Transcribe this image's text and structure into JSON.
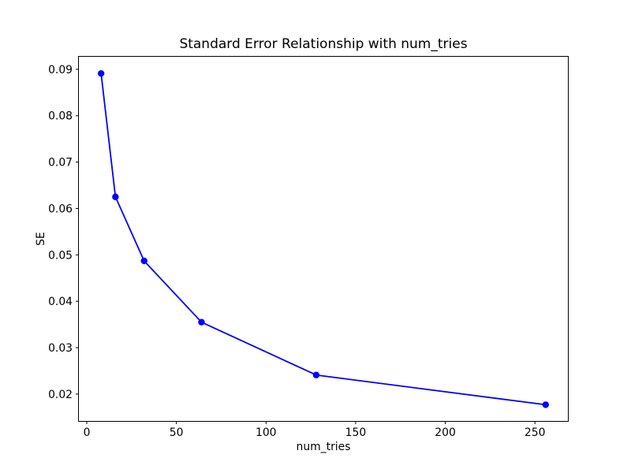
{
  "chart_data": {
    "type": "line",
    "title": "Standard Error Relationship with num_tries",
    "xlabel": "num_tries",
    "ylabel": "SE",
    "x": [
      8,
      16,
      32,
      64,
      128,
      256
    ],
    "y": [
      0.0891,
      0.0625,
      0.0487,
      0.0355,
      0.0241,
      0.0177
    ],
    "xticks": [
      0,
      50,
      100,
      150,
      200,
      250
    ],
    "yticks": [
      0.02,
      0.03,
      0.04,
      0.05,
      0.06,
      0.07,
      0.08,
      0.09
    ],
    "xtick_decimals": 0,
    "ytick_decimals": 2,
    "xlim": [
      -4.4,
      268.4
    ],
    "ylim": [
      0.0142,
      0.0927
    ],
    "grid": false,
    "legend": null,
    "marker": "circle",
    "line_color": "#0000ff",
    "marker_color": "#0000ff",
    "spine_color": "#000000",
    "text_color": "#000000",
    "background_color": "#ffffff"
  }
}
